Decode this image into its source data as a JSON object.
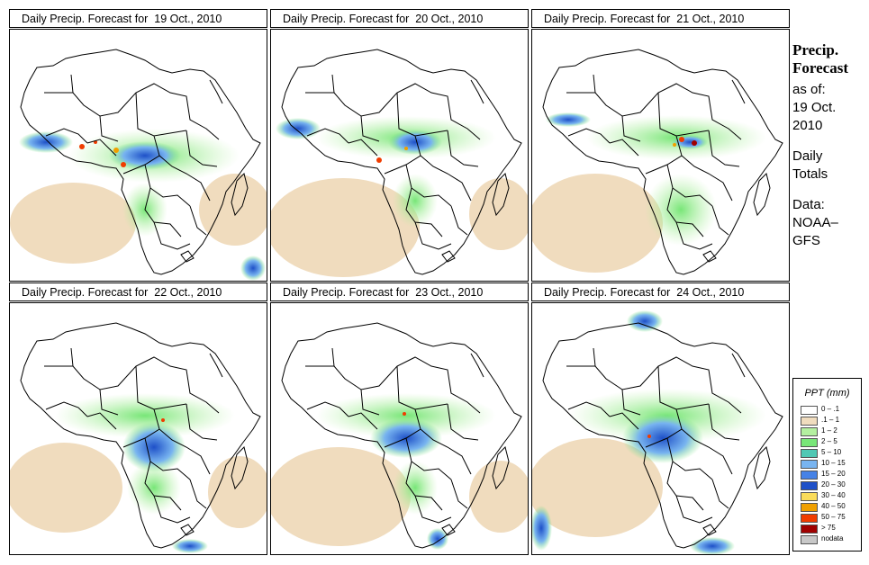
{
  "panels": [
    {
      "title": "Daily Precip. Forecast for  19 Oct., 2010"
    },
    {
      "title": "Daily Precip. Forecast for  20 Oct., 2010"
    },
    {
      "title": "Daily Precip. Forecast for  21 Oct., 2010"
    },
    {
      "title": "Daily Precip. Forecast for  22 Oct., 2010"
    },
    {
      "title": "Daily Precip. Forecast for  23 Oct., 2010"
    },
    {
      "title": "Daily Precip. Forecast for  24 Oct., 2010"
    }
  ],
  "sidebar": {
    "heading1": "Precip.",
    "heading2": "Forecast",
    "asof1": "as of:",
    "asof2": "19 Oct.",
    "asof3": "2010",
    "totals1": "Daily",
    "totals2": "Totals",
    "data1": "Data:",
    "data2": "NOAA–",
    "data3": "GFS"
  },
  "legend": {
    "title": "PPT (mm)",
    "items": [
      {
        "label": "0 – .1",
        "color": "#ffffff"
      },
      {
        "label": ".1 – 1",
        "color": "#f0dcbe"
      },
      {
        "label": "1 – 2",
        "color": "#b4f0a0"
      },
      {
        "label": "2 – 5",
        "color": "#78e678"
      },
      {
        "label": "5 – 10",
        "color": "#50c8b4"
      },
      {
        "label": "10 – 15",
        "color": "#78b4f0"
      },
      {
        "label": "15 – 20",
        "color": "#4682e6"
      },
      {
        "label": "20 – 30",
        "color": "#1e50c8"
      },
      {
        "label": "30 – 40",
        "color": "#fadc5a"
      },
      {
        "label": "40 – 50",
        "color": "#f0a000"
      },
      {
        "label": "50 – 75",
        "color": "#f03c00"
      },
      {
        "label": "> 75",
        "color": "#a00000"
      },
      {
        "label": "nodata",
        "color": "#c8c8c8"
      }
    ]
  }
}
